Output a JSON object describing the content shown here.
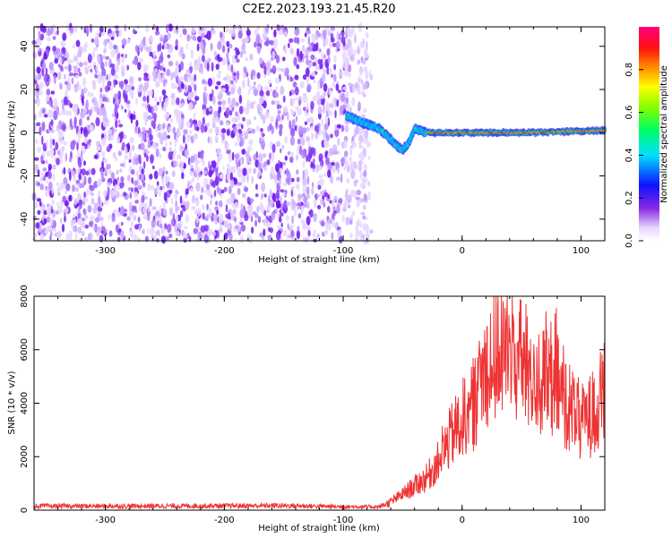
{
  "figure": {
    "title": "C2E2.2023.193.21.45.R20"
  },
  "chart_data": [
    {
      "type": "heatmap",
      "title": "C2E2.2023.193.21.45.R20",
      "xlabel": "Height of straight line (km)",
      "ylabel": "Frequency (Hz)",
      "xlim": [
        -360,
        120
      ],
      "ylim": [
        -50,
        49
      ],
      "xticks": [
        -300,
        -200,
        -100,
        0,
        100
      ],
      "yticks": [
        -40,
        -20,
        0,
        20,
        40
      ],
      "noise_region_x": [
        -360,
        -80
      ],
      "signal_track": [
        {
          "x": -97,
          "y": 8
        },
        {
          "x": -90,
          "y": 6
        },
        {
          "x": -80,
          "y": 4
        },
        {
          "x": -70,
          "y": 2
        },
        {
          "x": -62,
          "y": -2
        },
        {
          "x": -55,
          "y": -6
        },
        {
          "x": -50,
          "y": -8
        },
        {
          "x": -45,
          "y": -5
        },
        {
          "x": -40,
          "y": 2
        },
        {
          "x": -30,
          "y": 0
        },
        {
          "x": 0,
          "y": 0
        },
        {
          "x": 50,
          "y": 0
        },
        {
          "x": 120,
          "y": 1
        }
      ],
      "colorbar": {
        "label": "Normalized spectral amplitude",
        "range": [
          0.0,
          1.0
        ],
        "ticks": [
          0.0,
          0.2,
          0.4,
          0.6,
          0.8
        ],
        "tick_labels": [
          "0.0",
          "0.2",
          "0.4",
          "0.6",
          "0.8"
        ]
      }
    },
    {
      "type": "line",
      "xlabel": "Height of straight line (km)",
      "ylabel": "SNR (10 * v/v)",
      "xlim": [
        -360,
        120
      ],
      "ylim": [
        0,
        8000
      ],
      "xticks": [
        -300,
        -200,
        -100,
        0,
        100
      ],
      "yticks": [
        0,
        2000,
        4000,
        6000,
        8000
      ],
      "color": "#ee3333",
      "envelope": {
        "x": [
          -360,
          -300,
          -200,
          -150,
          -100,
          -70,
          -60,
          -50,
          -40,
          -30,
          -20,
          -10,
          0,
          10,
          20,
          30,
          40,
          50,
          60,
          70,
          80,
          90,
          100,
          110,
          120
        ],
        "y": [
          150,
          150,
          160,
          170,
          130,
          120,
          300,
          600,
          900,
          1200,
          1800,
          2700,
          3400,
          4000,
          5400,
          6000,
          5900,
          5500,
          5000,
          4700,
          4600,
          3900,
          3300,
          3600,
          4400
        ]
      }
    }
  ]
}
